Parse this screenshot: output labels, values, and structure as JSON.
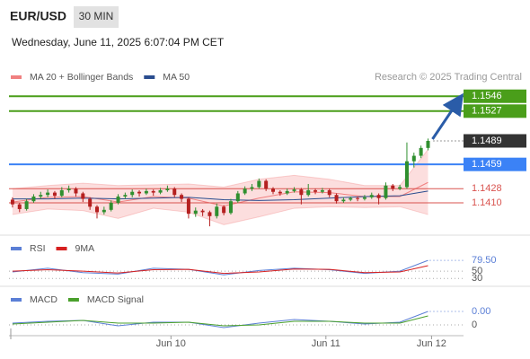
{
  "header": {
    "symbol": "EUR/USD",
    "timeframe": "30 MIN",
    "datetime": "Wednesday, June 11, 2025 6:07:04 PM CET",
    "credit": "Research © 2025 Trading Central"
  },
  "chart_data": [
    {
      "type": "candlestick",
      "up_color": "#2f8f2f",
      "down_color": "#b52020",
      "xlim": [
        -0.5,
        62
      ],
      "xticks": [
        {
          "value": 22.5,
          "label": "Jun 10"
        },
        {
          "value": 44.5,
          "label": "Jun 11"
        },
        {
          "value": 59.5,
          "label": "Jun 12"
        }
      ],
      "ylim": [
        1.1371,
        1.156
      ],
      "candles": [
        [
          1.1414,
          1.1417,
          1.1404,
          1.1408
        ],
        [
          1.1408,
          1.141,
          1.1398,
          1.1402
        ],
        [
          1.1402,
          1.1415,
          1.14,
          1.1412
        ],
        [
          1.1412,
          1.1421,
          1.141,
          1.1418
        ],
        [
          1.1418,
          1.1424,
          1.1415,
          1.142
        ],
        [
          1.142,
          1.1427,
          1.1417,
          1.1423
        ],
        [
          1.1423,
          1.1425,
          1.1415,
          1.1419
        ],
        [
          1.1419,
          1.143,
          1.1417,
          1.1426
        ],
        [
          1.1426,
          1.1432,
          1.1423,
          1.1428
        ],
        [
          1.1428,
          1.143,
          1.1418,
          1.1422
        ],
        [
          1.1422,
          1.1424,
          1.1411,
          1.1415
        ],
        [
          1.1415,
          1.1417,
          1.1401,
          1.1405
        ],
        [
          1.1405,
          1.1407,
          1.139,
          1.1398
        ],
        [
          1.1398,
          1.1405,
          1.1395,
          1.1401
        ],
        [
          1.1401,
          1.1413,
          1.1399,
          1.141
        ],
        [
          1.141,
          1.1421,
          1.1408,
          1.1418
        ],
        [
          1.1418,
          1.1423,
          1.1415,
          1.142
        ],
        [
          1.142,
          1.1427,
          1.1417,
          1.1424
        ],
        [
          1.1424,
          1.1426,
          1.1418,
          1.1422
        ],
        [
          1.1422,
          1.1428,
          1.142,
          1.1425
        ],
        [
          1.1425,
          1.1427,
          1.1419,
          1.1423
        ],
        [
          1.1423,
          1.1429,
          1.1421,
          1.1426
        ],
        [
          1.1426,
          1.1432,
          1.1424,
          1.1428
        ],
        [
          1.1428,
          1.143,
          1.1417,
          1.142
        ],
        [
          1.142,
          1.1422,
          1.1411,
          1.1415
        ],
        [
          1.1415,
          1.1417,
          1.139,
          1.1396
        ],
        [
          1.1396,
          1.1404,
          1.1392,
          1.14
        ],
        [
          1.14,
          1.1402,
          1.1393,
          1.1398
        ],
        [
          1.1398,
          1.14,
          1.138,
          1.1393
        ],
        [
          1.1393,
          1.1409,
          1.139,
          1.1405
        ],
        [
          1.1405,
          1.1407,
          1.1394,
          1.1397
        ],
        [
          1.1397,
          1.1415,
          1.1395,
          1.1412
        ],
        [
          1.1412,
          1.1425,
          1.141,
          1.1422
        ],
        [
          1.1422,
          1.1431,
          1.142,
          1.1428
        ],
        [
          1.1428,
          1.1434,
          1.1425,
          1.143
        ],
        [
          1.143,
          1.1441,
          1.1428,
          1.1438
        ],
        [
          1.1438,
          1.144,
          1.1425,
          1.1428
        ],
        [
          1.1428,
          1.143,
          1.1421,
          1.1424
        ],
        [
          1.1424,
          1.1426,
          1.1419,
          1.1422
        ],
        [
          1.1422,
          1.1428,
          1.142,
          1.1425
        ],
        [
          1.1425,
          1.143,
          1.1423,
          1.1427
        ],
        [
          1.1427,
          1.1429,
          1.1408,
          1.142
        ],
        [
          1.142,
          1.1434,
          1.1418,
          1.1426
        ],
        [
          1.1426,
          1.1428,
          1.1421,
          1.1424
        ],
        [
          1.1424,
          1.1429,
          1.1422,
          1.1426
        ],
        [
          1.1426,
          1.1428,
          1.1417,
          1.142
        ],
        [
          1.142,
          1.1422,
          1.1409,
          1.1412
        ],
        [
          1.1412,
          1.1417,
          1.141,
          1.1414
        ],
        [
          1.1414,
          1.1418,
          1.1412,
          1.1416
        ],
        [
          1.1416,
          1.1418,
          1.1412,
          1.1415
        ],
        [
          1.1415,
          1.142,
          1.1413,
          1.1417
        ],
        [
          1.1417,
          1.1423,
          1.1415,
          1.142
        ],
        [
          1.142,
          1.1422,
          1.1408,
          1.1416
        ],
        [
          1.1416,
          1.1436,
          1.1414,
          1.1432
        ],
        [
          1.1432,
          1.1434,
          1.1425,
          1.1428
        ],
        [
          1.1428,
          1.1433,
          1.1426,
          1.143
        ],
        [
          1.143,
          1.1487,
          1.1428,
          1.1463
        ],
        [
          1.1463,
          1.1474,
          1.1455,
          1.147
        ],
        [
          1.147,
          1.1483,
          1.1467,
          1.148
        ],
        [
          1.148,
          1.1492,
          1.1477,
          1.1489
        ]
      ],
      "x": [
        0,
        5,
        10,
        15,
        20,
        25,
        30,
        35,
        40,
        45,
        50,
        55,
        59
      ],
      "series": [
        {
          "name": "MA 20 + Bollinger Bands",
          "color": "#f08080",
          "band_color": "#fcdede",
          "values": [
            1.1411,
            1.1417,
            1.1418,
            1.1411,
            1.1418,
            1.1416,
            1.1406,
            1.1416,
            1.1424,
            1.1423,
            1.1418,
            1.1418,
            1.1436
          ],
          "upper": [
            1.1428,
            1.1432,
            1.1435,
            1.1432,
            1.1433,
            1.1434,
            1.143,
            1.144,
            1.1445,
            1.144,
            1.1432,
            1.1432,
            1.1478
          ],
          "lower": [
            1.1395,
            1.1402,
            1.14,
            1.139,
            1.1403,
            1.1398,
            1.1382,
            1.1392,
            1.1403,
            1.1405,
            1.1404,
            1.1405,
            1.1395
          ]
        },
        {
          "name": "MA 50",
          "color": "#2a4d8f",
          "values": [
            1.1415,
            1.1415,
            1.1416,
            1.1415,
            1.1416,
            1.1417,
            1.1414,
            1.1413,
            1.1414,
            1.1416,
            1.1418,
            1.1419,
            1.1425
          ]
        }
      ],
      "levels": {
        "values": [
          1.1546,
          1.1527,
          1.1489,
          1.1459,
          1.1428,
          1.141
        ],
        "value_labels": [
          "1.1546",
          "1.1527",
          "1.1489",
          "1.1459",
          "1.1428",
          "1.1410"
        ],
        "colors": [
          "#4a9e1a",
          "#4a9e1a",
          "#333333",
          "#3b82f6",
          "#d9534f",
          "#d9534f"
        ],
        "styles": [
          "box",
          "box",
          "dotted-box",
          "box",
          "text",
          "text"
        ]
      },
      "arrow_color": "#2a5ca8"
    },
    {
      "type": "line",
      "ylim": [
        16,
        97
      ],
      "yticks": [
        50,
        30
      ],
      "x": [
        0,
        5,
        10,
        15,
        20,
        25,
        30,
        35,
        40,
        45,
        50,
        55,
        59
      ],
      "series": [
        {
          "name": "RSI",
          "color": "#5b7fd6",
          "values": [
            48,
            58,
            46,
            42,
            58,
            55,
            40,
            52,
            58,
            54,
            44,
            50,
            79.5
          ],
          "current_label": "79.50"
        },
        {
          "name": "9MA",
          "color": "#d62020",
          "values": [
            50,
            54,
            50,
            45,
            54,
            55,
            44,
            48,
            56,
            55,
            46,
            48,
            65
          ]
        }
      ]
    },
    {
      "type": "line",
      "ylim": [
        -0.001,
        0.0022
      ],
      "yticks": [
        0
      ],
      "x": [
        0,
        5,
        10,
        15,
        20,
        25,
        30,
        35,
        40,
        45,
        50,
        55,
        59
      ],
      "series": [
        {
          "name": "MACD",
          "color": "#5b7fd6",
          "values": [
            0.0002,
            0.0004,
            0.0005,
            -0.0001,
            0.0003,
            0.0003,
            -0.0003,
            0.0002,
            0.0006,
            0.0004,
            0.0001,
            0.0003,
            0.0015
          ],
          "current_label": "0.00"
        },
        {
          "name": "MACD Signal",
          "color": "#4aa02c",
          "values": [
            0.0001,
            0.0003,
            0.0005,
            0.0002,
            0.0002,
            0.0003,
            -0.0001,
            0,
            0.0004,
            0.0004,
            0.0002,
            0.0002,
            0.001
          ]
        }
      ]
    }
  ]
}
